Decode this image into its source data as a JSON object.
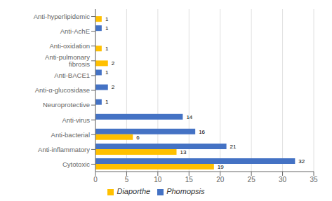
{
  "chart_data": {
    "type": "bar",
    "orientation": "horizontal",
    "categories": [
      "Cytotoxic",
      "Anti-inflammatory",
      "Anti-bacterial",
      "Anti-virus",
      "Neuroprotective",
      "Anti-α-glucosidase",
      "Anti-BACE1",
      "Anti-pulmonary fibrosis",
      "Anti-oxidation",
      "Anti-AchE",
      "Anti-hyperlipidemic"
    ],
    "series": [
      {
        "name": "Phomopsis",
        "color": "#4472C4",
        "values": [
          32,
          21,
          16,
          14,
          1,
          2,
          1,
          0,
          0,
          1,
          0
        ]
      },
      {
        "name": "Diaporthe",
        "color": "#FFC000",
        "values": [
          19,
          13,
          6,
          0,
          0,
          0,
          0,
          2,
          1,
          0,
          1
        ]
      }
    ],
    "xlim": [
      0,
      35
    ],
    "xticks": [
      0,
      5,
      10,
      15,
      20,
      25,
      30,
      35
    ],
    "grid": true,
    "legend": "bottom",
    "data_labels": true
  }
}
